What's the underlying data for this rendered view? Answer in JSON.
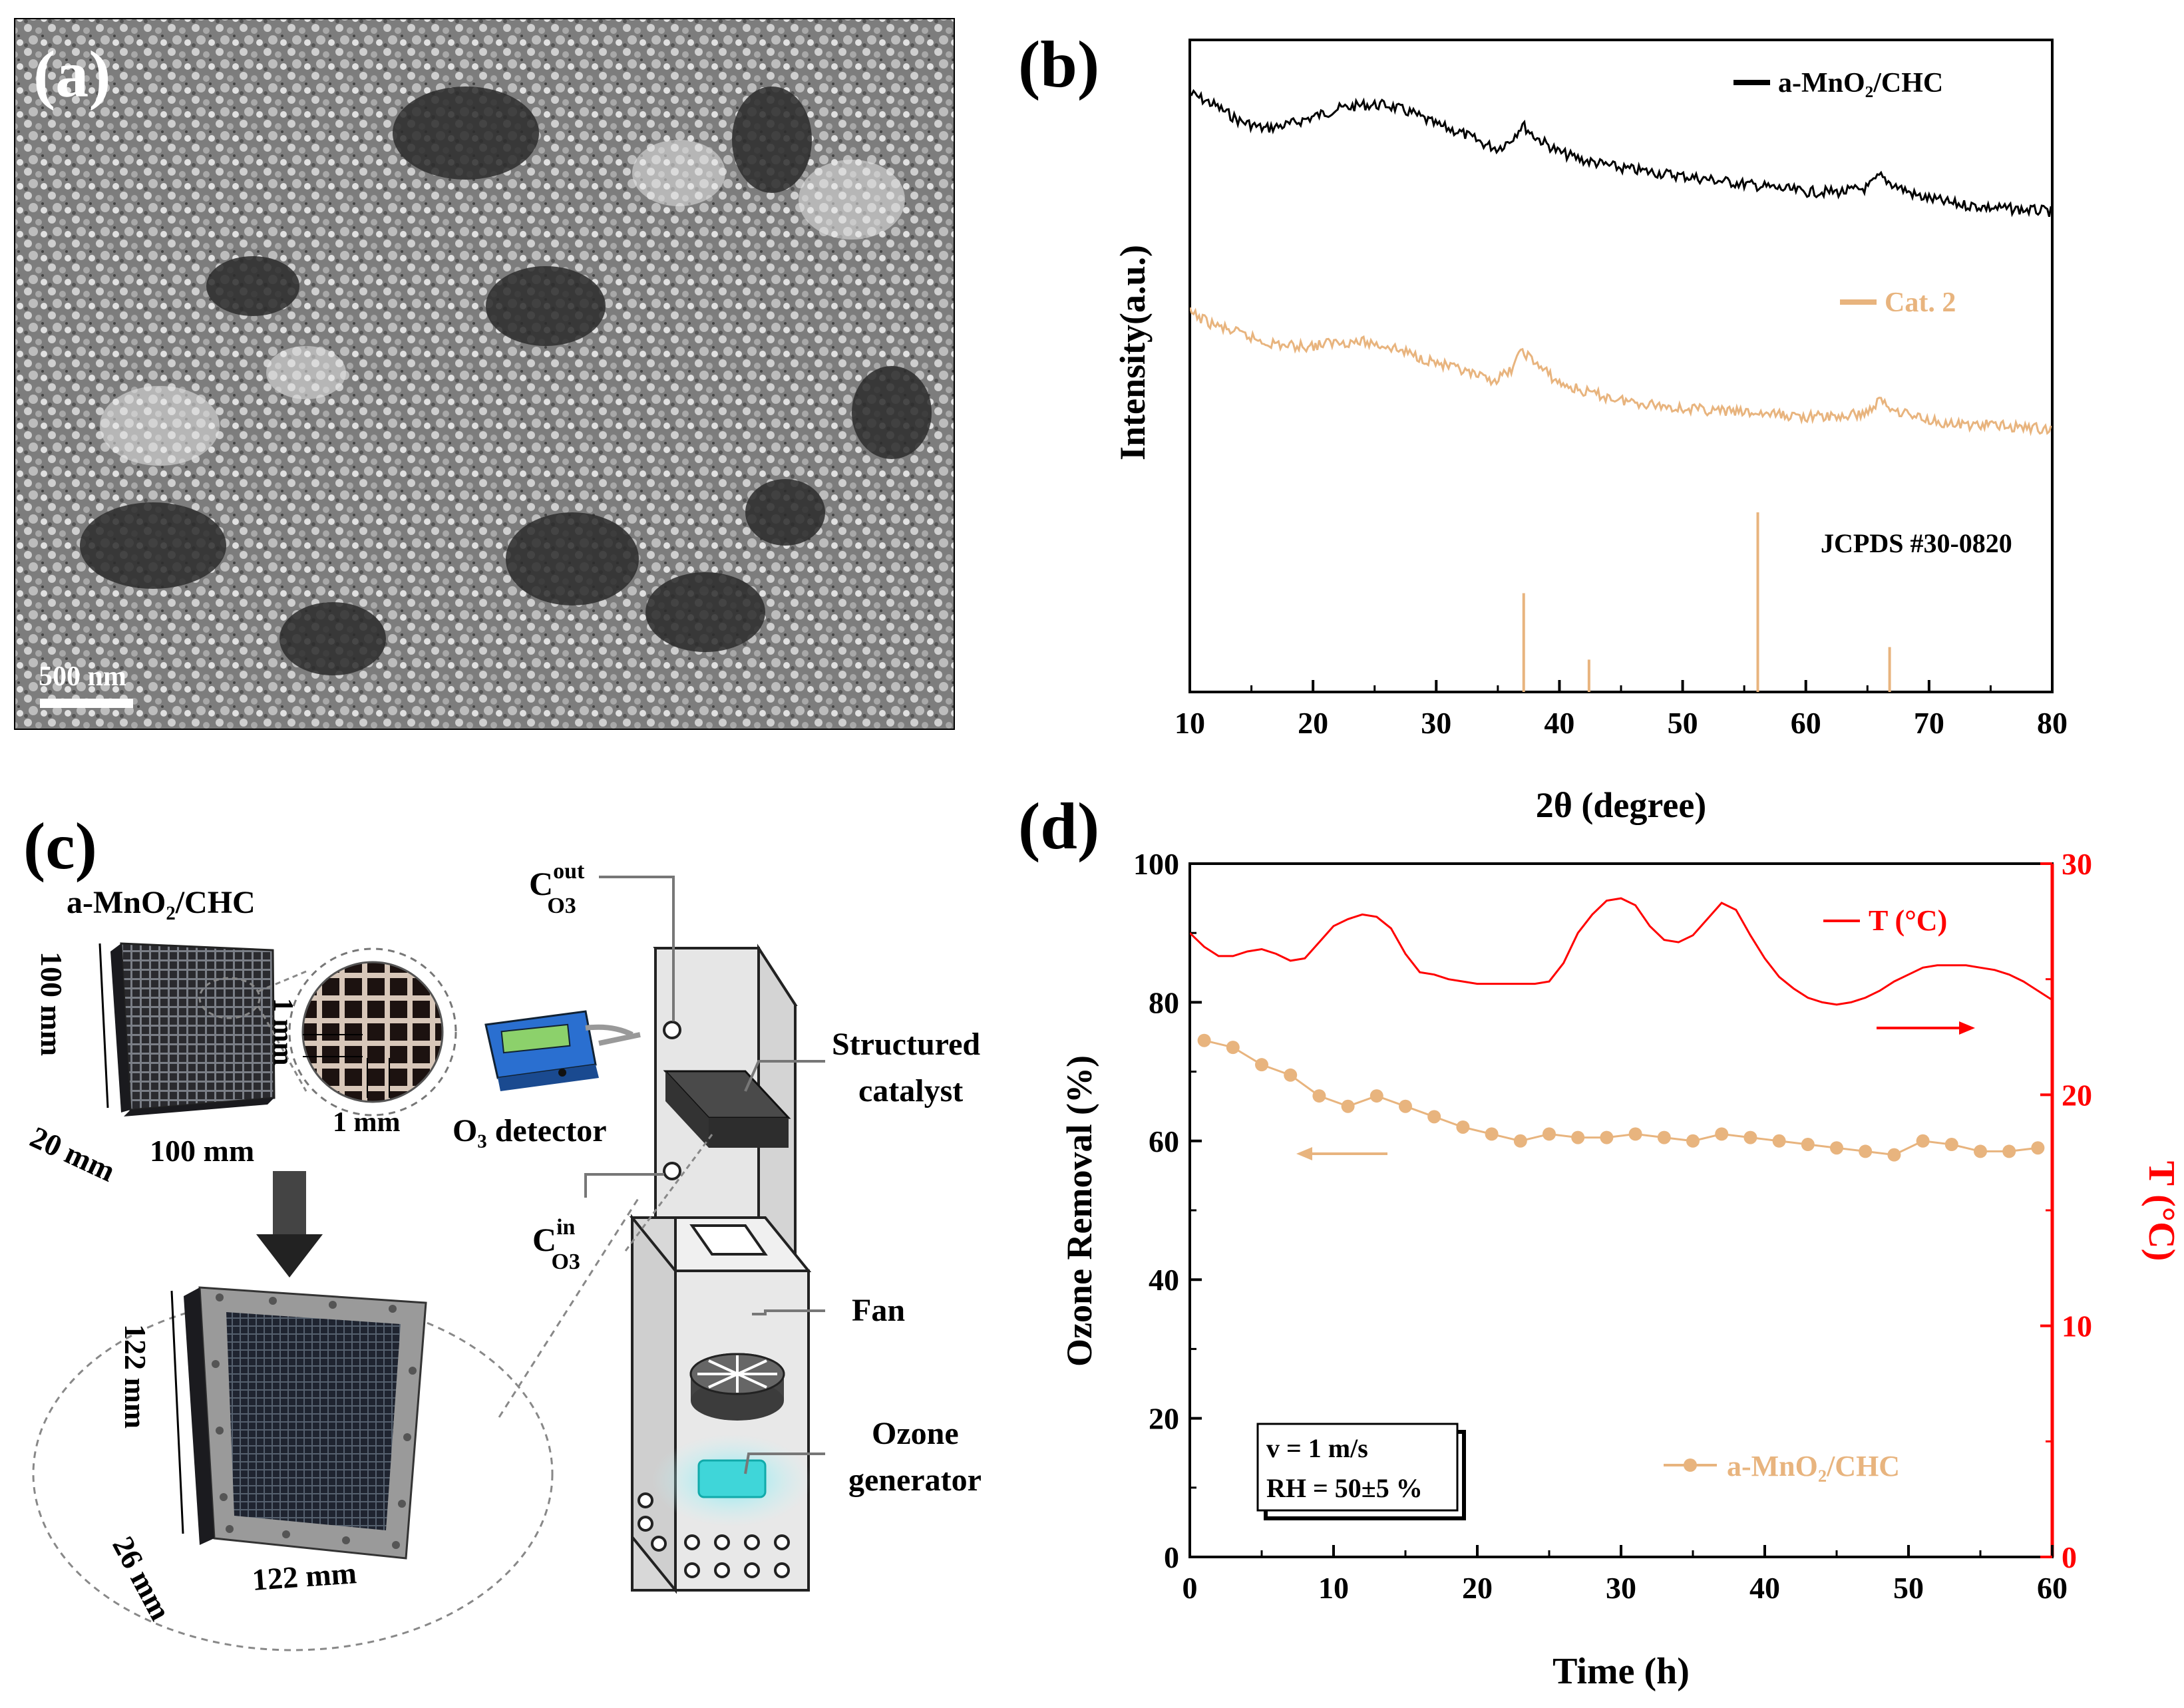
{
  "panel_labels": {
    "a": "(a)",
    "b": "(b)",
    "c": "(c)",
    "d": "(d)"
  },
  "panel_a": {
    "scale_bar": "500 nm"
  },
  "panel_b": {
    "ylabel": "Intensity(a.u.)",
    "xlabel": "2θ (degree)",
    "xlim": [
      10,
      80
    ],
    "xticks": [
      10,
      20,
      30,
      40,
      50,
      60,
      70,
      80
    ],
    "legend1": "a-MnO₂/CHC",
    "legend2": "Cat. 2",
    "ref_label": "JCPDS #30-0820"
  },
  "panel_c": {
    "material": "a-MnO₂/CHC",
    "dim_height": "100 mm",
    "dim_depth": "20 mm",
    "dim_width": "100 mm",
    "cell_1": "1 mm",
    "cell_2": "1 mm",
    "big_height": "122 mm",
    "big_depth": "26 mm",
    "big_width": "122 mm",
    "c_out_main": "C",
    "c_out_sup": "out",
    "c_out_sub": "O3",
    "c_in_main": "C",
    "c_in_sup": "in",
    "c_in_sub": "O3",
    "detector": "O₃ detector",
    "structured_1": "Structured",
    "structured_2": "catalyst",
    "fan": "Fan",
    "ozone_1": "Ozone",
    "ozone_2": "generator"
  },
  "colors": {
    "series1": "#000000",
    "series2": "#e8b47e",
    "ozone": "#e8b47e",
    "temp": "#ff0000"
  },
  "chart_data": [
    {
      "id": "b",
      "type": "line",
      "title": "",
      "xlabel": "2θ (degree)",
      "ylabel": "Intensity(a.u.)",
      "xlim": [
        10,
        80
      ],
      "series": [
        {
          "name": "a-MnO₂/CHC",
          "x": [
            10,
            12,
            14,
            16,
            18,
            20,
            22,
            24,
            26,
            28,
            30,
            32,
            34,
            35,
            36,
            37,
            38,
            40,
            42,
            45,
            50,
            55,
            60,
            63,
            65,
            66,
            67,
            69,
            72,
            75,
            80
          ],
          "values": [
            100,
            97,
            93,
            91,
            92,
            94,
            96,
            97,
            97,
            95,
            92,
            90,
            87,
            86,
            88,
            92,
            89,
            85,
            83,
            81,
            79,
            77,
            75,
            75,
            76,
            79,
            77,
            74,
            72,
            71,
            70
          ]
        },
        {
          "name": "Cat. 2",
          "x": [
            10,
            12,
            14,
            16,
            18,
            20,
            22,
            24,
            26,
            28,
            30,
            32,
            34,
            35,
            36,
            37,
            38,
            40,
            42,
            45,
            50,
            55,
            60,
            63,
            65,
            66,
            67,
            69,
            72,
            75,
            80
          ],
          "values": [
            58,
            55,
            53,
            51,
            50,
            50,
            51,
            51,
            50,
            48,
            46,
            44,
            42,
            42,
            44,
            49,
            46,
            41,
            39,
            37,
            35,
            34,
            33,
            33,
            34,
            37,
            35,
            33,
            31,
            31,
            30
          ]
        }
      ],
      "reference_sticks": {
        "name": "JCPDS #30-0820",
        "x": [
          37.1,
          42.4,
          56.1,
          66.8
        ],
        "values": [
          0.55,
          0.18,
          1.0,
          0.25
        ]
      }
    },
    {
      "id": "d",
      "type": "line",
      "title": "",
      "xlabel": "Time (h)",
      "ylabel": "Ozone Removal (%)",
      "y2label": "T (°C)",
      "xlim": [
        0,
        60
      ],
      "ylim": [
        0,
        100
      ],
      "y2lim": [
        0,
        30
      ],
      "xticks": [
        0,
        10,
        20,
        30,
        40,
        50,
        60
      ],
      "yticks": [
        0,
        20,
        40,
        60,
        80,
        100
      ],
      "y2ticks": [
        0,
        10,
        20,
        30
      ],
      "series": [
        {
          "name": "a-MnO₂/CHC",
          "axis": "left",
          "x": [
            1,
            3,
            5,
            7,
            9,
            11,
            13,
            15,
            17,
            19,
            21,
            23,
            25,
            27,
            29,
            31,
            33,
            35,
            37,
            39,
            41,
            43,
            45,
            47,
            49,
            51,
            53,
            55,
            57,
            59
          ],
          "values": [
            74.5,
            73.5,
            71,
            69.5,
            66.5,
            65,
            66.5,
            65,
            63.5,
            62,
            61,
            60,
            61,
            60.5,
            60.5,
            61,
            60.5,
            60,
            61,
            60.5,
            60,
            59.5,
            59,
            58.5,
            58,
            60,
            59.5,
            58.5,
            58.5,
            59
          ]
        },
        {
          "name": "T (°C)",
          "axis": "right",
          "x": [
            0,
            1,
            2,
            3,
            4,
            5,
            6,
            7,
            8,
            9,
            10,
            11,
            12,
            13,
            14,
            15,
            16,
            17,
            18,
            19,
            20,
            21,
            22,
            23,
            24,
            25,
            26,
            27,
            28,
            29,
            30,
            31,
            32,
            33,
            34,
            35,
            36,
            37,
            38,
            39,
            40,
            41,
            42,
            43,
            44,
            45,
            46,
            47,
            48,
            49,
            50,
            51,
            52,
            53,
            54,
            55,
            56,
            57,
            58,
            59,
            60
          ],
          "values": [
            27,
            26.4,
            26,
            26,
            26.2,
            26.3,
            26.1,
            25.8,
            25.9,
            26.6,
            27.3,
            27.6,
            27.8,
            27.7,
            27.2,
            26.1,
            25.3,
            25.2,
            25,
            24.9,
            24.8,
            24.8,
            24.8,
            24.8,
            24.8,
            24.9,
            25.7,
            27,
            27.8,
            28.4,
            28.5,
            28.2,
            27.3,
            26.7,
            26.6,
            26.9,
            27.6,
            28.3,
            28,
            26.9,
            25.9,
            25.1,
            24.6,
            24.2,
            24,
            23.9,
            24,
            24.2,
            24.5,
            24.9,
            25.2,
            25.5,
            25.6,
            25.6,
            25.6,
            25.5,
            25.4,
            25.2,
            24.9,
            24.5,
            24.1
          ]
        }
      ]
    }
  ]
}
